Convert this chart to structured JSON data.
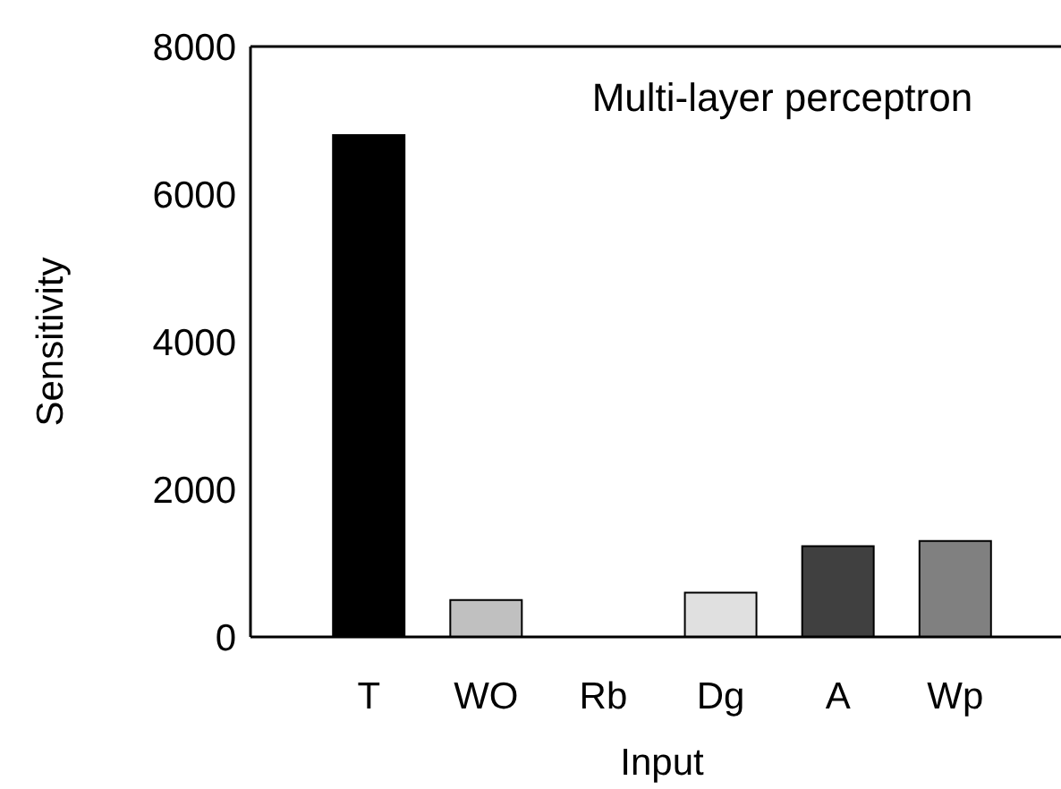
{
  "chart_data": {
    "type": "bar",
    "title": "Multi-layer perceptron",
    "xlabel": "Input",
    "ylabel": "Sensitivity",
    "categories": [
      "T",
      "WO",
      "Rb",
      "Dg",
      "A",
      "Wp"
    ],
    "values": [
      6800,
      500,
      0,
      600,
      1230,
      1300
    ],
    "colors": [
      "#000000",
      "#c0c0c0",
      "#ffffff",
      "#e0e0e0",
      "#404040",
      "#808080"
    ],
    "ylim": [
      0,
      8000
    ],
    "yticks": [
      0,
      2000,
      4000,
      6000,
      8000
    ],
    "grid": false
  }
}
